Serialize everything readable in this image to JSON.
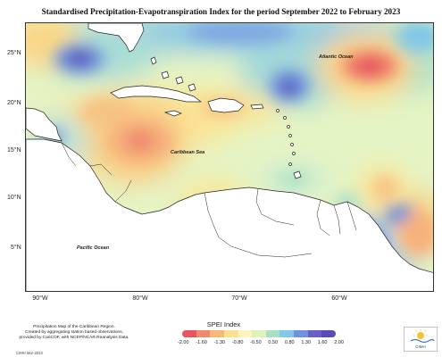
{
  "title": "Standardised Precipitation-Evapotranspiration Index for the period September 2022 to February 2023",
  "map": {
    "labels": {
      "atlantic": "Atlantic Ocean",
      "caribbean": "Caribbean Sea",
      "pacific": "Pacific Ocean"
    },
    "lat_ticks": [
      "25°N",
      "20°N",
      "15°N",
      "10°N",
      "5°N"
    ],
    "lon_ticks": [
      "90°W",
      "80°W",
      "70°W",
      "60°W"
    ]
  },
  "legend": {
    "title": "SPEI Index",
    "ticks": [
      "-2.00",
      "-1.60",
      "-1.30",
      "-0.80",
      "-0.50",
      "0.50",
      "0.80",
      "1.30",
      "1.60",
      "2.00"
    ],
    "colors": [
      "#e8545f",
      "#f08a6c",
      "#f6b97a",
      "#fbe08d",
      "#fdf5bd",
      "#dff2b8",
      "#a7e0c4",
      "#82c7e6",
      "#6f93dc",
      "#6a5dc5",
      "#5a4bb8"
    ]
  },
  "footnote": "Precipitation Map of the Caribbean Region.\nCreated by aggregating station based observations,\nprovided by CariCOF, with NCEP/NCAR Reanalysis Data.",
  "credit": "CIMH Mar-2023",
  "logo_text": "CIMH"
}
